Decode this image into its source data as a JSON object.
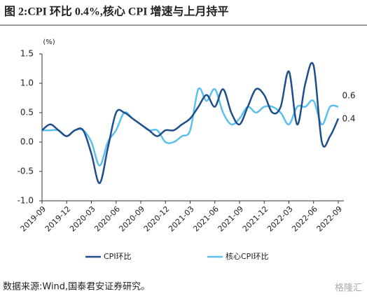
{
  "chart_data": {
    "type": "line",
    "title": "图 2:CPI 环比 0.4%,核心 CPI 增速与上月持平",
    "ylabel": "(%)",
    "categories": [
      "2019-09",
      null,
      null,
      "2019-12",
      null,
      null,
      "2020-03",
      null,
      null,
      "2020-06",
      null,
      null,
      "2020-09",
      null,
      null,
      "2020-12",
      null,
      null,
      "2021-03",
      null,
      null,
      "2021-06",
      null,
      null,
      "2021-09",
      null,
      null,
      "2021-12",
      null,
      null,
      "2022-03",
      null,
      null,
      "2022-06",
      null,
      null,
      "2022-09"
    ],
    "series": [
      {
        "name": "CPI环比",
        "color": "#1f4e8c",
        "values": [
          0.2,
          0.3,
          0.2,
          0.1,
          0.2,
          0.2,
          -0.2,
          -0.7,
          -0.1,
          0.5,
          0.5,
          0.4,
          0.3,
          0.2,
          0.1,
          0.2,
          0.2,
          0.3,
          0.4,
          0.6,
          0.8,
          0.6,
          0.9,
          0.5,
          0.3,
          0.6,
          0.9,
          0.8,
          0.5,
          0.6,
          1.2,
          0.3,
          1.0,
          1.3,
          0.0,
          0.1,
          0.4
        ]
      },
      {
        "name": "核心CPI环比",
        "color": "#5bc0eb",
        "values": [
          0.2,
          0.2,
          0.2,
          0.1,
          0.2,
          0.2,
          0.0,
          -0.4,
          0.0,
          0.2,
          0.5,
          0.4,
          0.3,
          0.2,
          0.2,
          0.0,
          0.0,
          0.1,
          0.2,
          0.9,
          0.7,
          0.9,
          0.5,
          0.3,
          0.4,
          0.6,
          0.5,
          0.6,
          0.6,
          0.5,
          0.3,
          0.6,
          0.6,
          0.7,
          0.3,
          0.6,
          0.6
        ]
      }
    ],
    "annotations": [
      "0.6",
      "0.4"
    ],
    "ylim": [
      -1.0,
      1.5
    ],
    "yticks": [
      {
        "value": -1.0,
        "label": "-1.0"
      },
      -0.5,
      {
        "value": 0.0,
        "label": "0.0"
      },
      0.5,
      {
        "value": 1.0,
        "label": "1.0"
      },
      1.5
    ],
    "source": "数据来源:Wind,国泰君安证券研究。",
    "watermark": "格隆汇"
  }
}
